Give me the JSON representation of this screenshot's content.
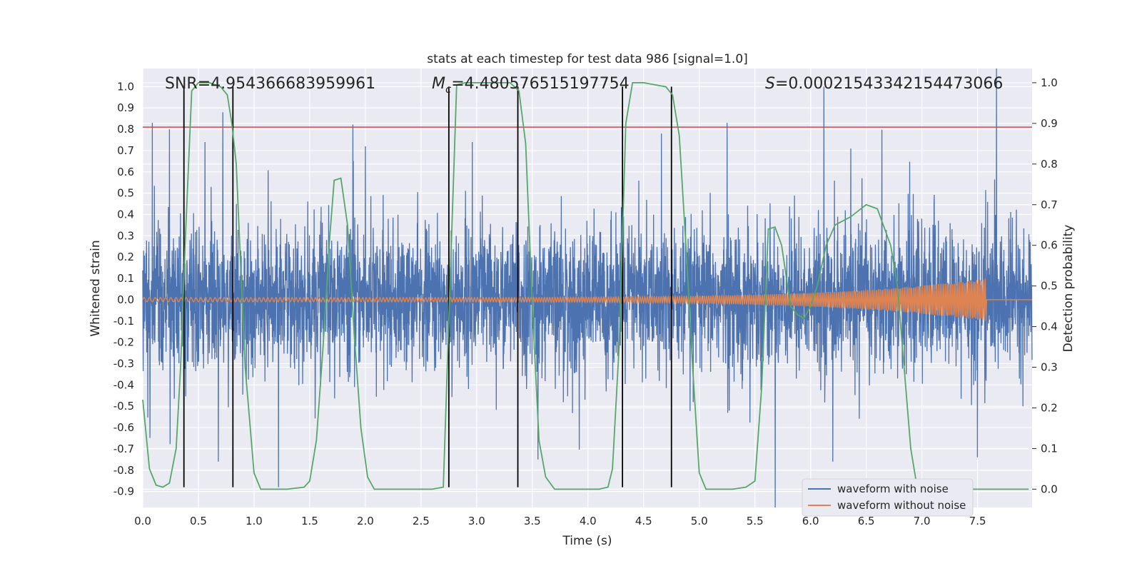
{
  "chart_data": {
    "type": "line",
    "title": "stats at each timestep for test data 986 [signal=1.0]",
    "xlabel": "Time (s)",
    "ylabel": "Whitened strain",
    "ylabel_right": "Detection probability",
    "xlim": [
      0.0,
      7.99
    ],
    "ylim": [
      -0.975,
      1.085
    ],
    "ylim_right": [
      -0.045,
      1.035
    ],
    "x_ticks": [
      "0.0",
      "0.5",
      "1.0",
      "1.5",
      "2.0",
      "2.5",
      "3.0",
      "3.5",
      "4.0",
      "4.5",
      "5.0",
      "5.5",
      "6.0",
      "6.5",
      "7.0",
      "7.5"
    ],
    "y_ticks": [
      "1.0",
      "0.9",
      "0.8",
      "0.7",
      "0.6",
      "0.5",
      "0.4",
      "0.3",
      "0.2",
      "0.1",
      "0.0",
      "-0.1",
      "-0.2",
      "-0.3",
      "-0.4",
      "-0.5",
      "-0.6",
      "-0.7",
      "-0.8",
      "-0.9"
    ],
    "y_ticks_right": [
      "1.0",
      "0.9",
      "0.8",
      "0.7",
      "0.6",
      "0.5",
      "0.4",
      "0.3",
      "0.2",
      "0.1",
      "0.0"
    ],
    "grid": true,
    "legend_position": "lower-right",
    "annotations": {
      "snr": "SNR=4.954366683959961",
      "mc_symbol": "M",
      "mc_sub": "c",
      "mc_value": "=4.480576515197754",
      "s_symbol": "S",
      "s_value": "=0.00021543342154473066"
    },
    "threshold_line": {
      "y": 0.81,
      "color": "#c44e52"
    },
    "detection_boundaries_x": [
      0.37,
      0.81,
      2.75,
      3.37,
      4.31,
      4.75
    ],
    "series": [
      {
        "name": "waveform with noise",
        "color": "#4c72b0",
        "description_x_range": [
          0.0,
          7.99
        ],
        "typical_envelope": [
          -0.35,
          0.35
        ],
        "notable_peaks": [
          {
            "x": 0.24,
            "y": 0.8
          },
          {
            "x": 0.56,
            "y": 0.74
          },
          {
            "x": 0.72,
            "y": 0.88
          },
          {
            "x": 2.0,
            "y": 0.72
          },
          {
            "x": 2.96,
            "y": 0.74
          },
          {
            "x": 4.66,
            "y": 0.78
          },
          {
            "x": 5.25,
            "y": 0.83
          },
          {
            "x": 6.12,
            "y": 1.0
          },
          {
            "x": 0.68,
            "y": -0.76
          },
          {
            "x": 1.22,
            "y": -0.88
          },
          {
            "x": 3.55,
            "y": -0.75
          },
          {
            "x": 6.2,
            "y": -0.76
          },
          {
            "x": 7.5,
            "y": -0.74
          }
        ]
      },
      {
        "name": "waveform without noise",
        "color": "#dd8452",
        "chirp_start_amplitude": 0.01,
        "chirp_end_x": 7.58,
        "chirp_end_amplitude": 0.1
      },
      {
        "name": "detection probability",
        "color": "#55a868",
        "axis": "right",
        "x": [
          0.0,
          0.06,
          0.12,
          0.18,
          0.24,
          0.3,
          0.34,
          0.38,
          0.44,
          0.5,
          0.6,
          0.7,
          0.76,
          0.8,
          0.84,
          0.88,
          0.92,
          1.0,
          1.06,
          1.15,
          1.3,
          1.45,
          1.5,
          1.56,
          1.62,
          1.68,
          1.72,
          1.78,
          1.84,
          1.9,
          1.96,
          2.02,
          2.08,
          2.2,
          2.4,
          2.6,
          2.7,
          2.76,
          2.82,
          2.9,
          3.1,
          3.3,
          3.38,
          3.44,
          3.5,
          3.56,
          3.62,
          3.7,
          3.9,
          4.1,
          4.18,
          4.22,
          4.28,
          4.34,
          4.4,
          4.5,
          4.7,
          4.76,
          4.82,
          4.88,
          4.94,
          5.0,
          5.06,
          5.15,
          5.3,
          5.42,
          5.5,
          5.56,
          5.62,
          5.68,
          5.74,
          5.82,
          5.88,
          5.94,
          6.0,
          6.06,
          6.14,
          6.22,
          6.36,
          6.5,
          6.6,
          6.72,
          6.78,
          6.84,
          6.9,
          6.96,
          7.1,
          7.3,
          7.5,
          7.7,
          7.96
        ],
        "values": [
          0.22,
          0.05,
          0.01,
          0.005,
          0.015,
          0.1,
          0.3,
          0.6,
          0.98,
          1.0,
          1.0,
          0.99,
          0.97,
          0.9,
          0.8,
          0.55,
          0.3,
          0.04,
          0.0,
          0.0,
          0.0,
          0.005,
          0.02,
          0.12,
          0.35,
          0.62,
          0.76,
          0.765,
          0.65,
          0.38,
          0.15,
          0.03,
          0.0,
          0.0,
          0.0,
          0.0,
          0.005,
          0.5,
          0.995,
          1.0,
          1.0,
          1.0,
          0.98,
          0.85,
          0.45,
          0.12,
          0.03,
          0.0,
          0.0,
          0.0,
          0.005,
          0.05,
          0.35,
          0.9,
          1.0,
          1.0,
          0.99,
          0.97,
          0.87,
          0.6,
          0.3,
          0.04,
          0.0,
          0.0,
          0.0,
          0.005,
          0.02,
          0.25,
          0.64,
          0.645,
          0.6,
          0.45,
          0.43,
          0.42,
          0.45,
          0.5,
          0.6,
          0.65,
          0.67,
          0.7,
          0.69,
          0.6,
          0.5,
          0.3,
          0.1,
          0.0,
          0.0,
          0.0,
          0.0,
          0.0,
          0.0
        ]
      }
    ]
  },
  "legend": [
    {
      "label": "waveform with noise",
      "color": "#4c72b0"
    },
    {
      "label": "waveform without noise",
      "color": "#dd8452"
    }
  ]
}
